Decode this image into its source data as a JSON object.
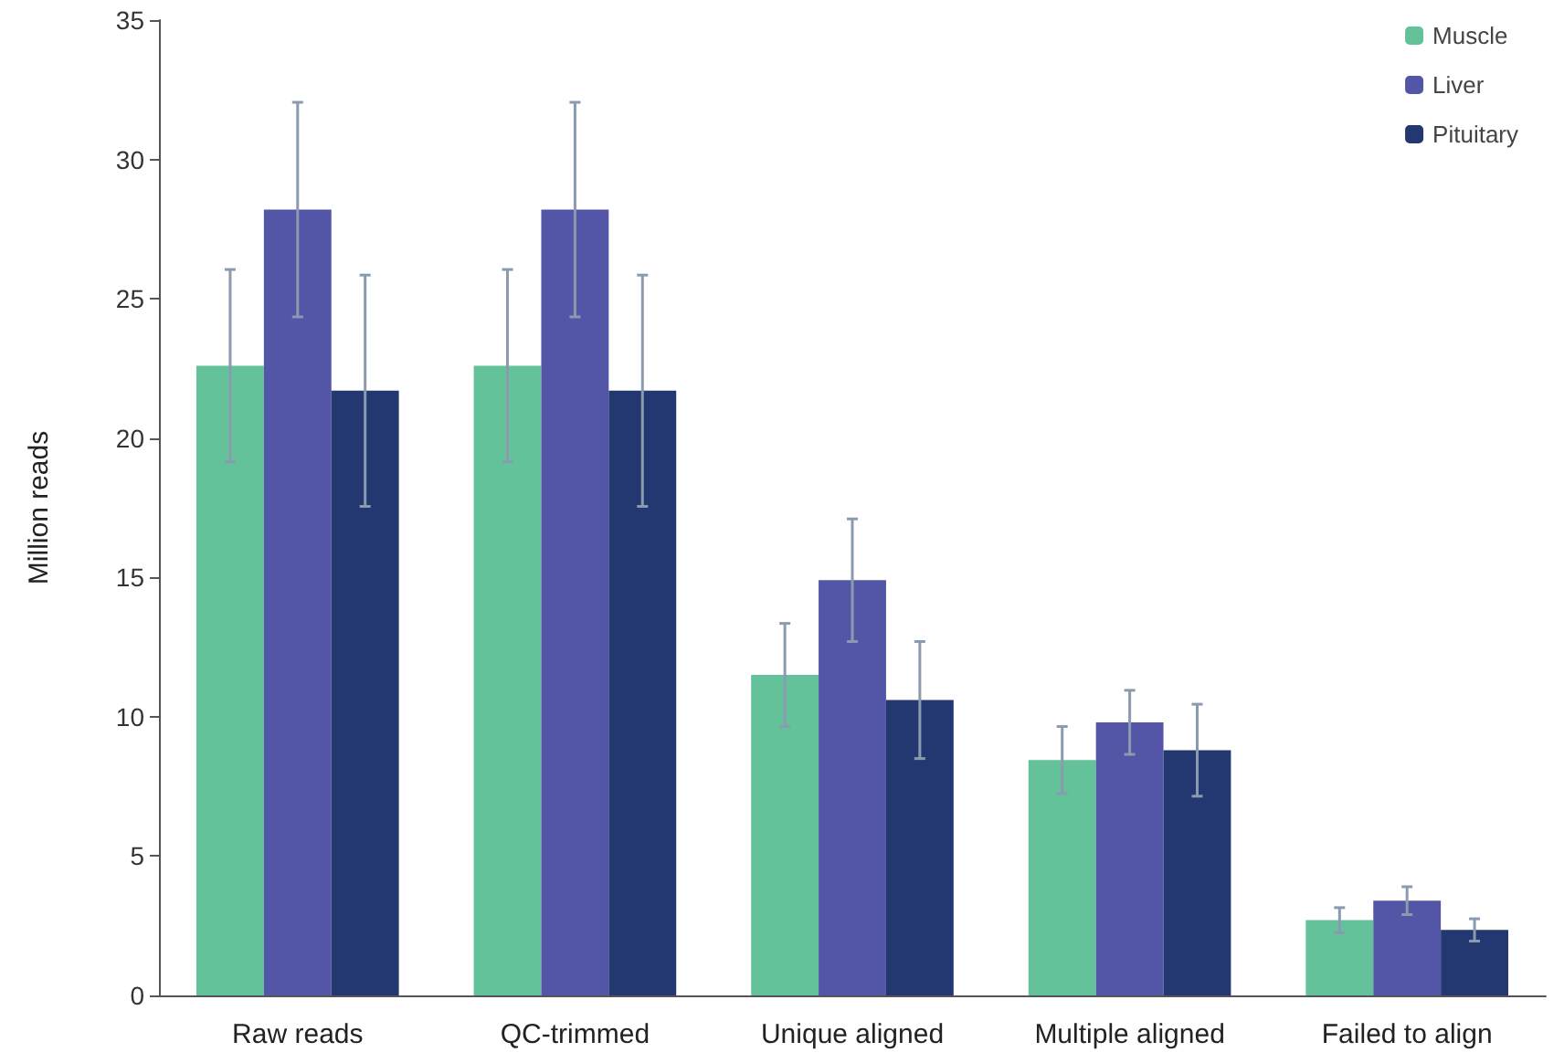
{
  "chart_data": {
    "type": "bar",
    "ylabel": "Million reads",
    "categories": [
      "Raw reads",
      "QC-trimmed",
      "Unique aligned",
      "Multiple aligned",
      "Failed to align"
    ],
    "series": [
      {
        "name": "Muscle",
        "color": "#63c29a",
        "values": [
          22.6,
          22.6,
          11.5,
          8.45,
          2.7
        ],
        "errors": [
          3.45,
          3.45,
          1.85,
          1.2,
          0.45
        ]
      },
      {
        "name": "Liver",
        "color": "#5356a6",
        "values": [
          28.2,
          28.2,
          14.9,
          9.8,
          3.4
        ],
        "errors": [
          3.85,
          3.85,
          2.2,
          1.15,
          0.5
        ]
      },
      {
        "name": "Pituitary",
        "color": "#233870",
        "values": [
          21.7,
          21.7,
          10.6,
          8.8,
          2.35
        ],
        "errors": [
          4.15,
          4.15,
          2.1,
          1.65,
          0.4
        ]
      }
    ],
    "ylim": [
      0,
      35
    ],
    "yticks": [
      0,
      5,
      10,
      15,
      20,
      25,
      30,
      35
    ],
    "grid": false,
    "legend": "top right"
  }
}
